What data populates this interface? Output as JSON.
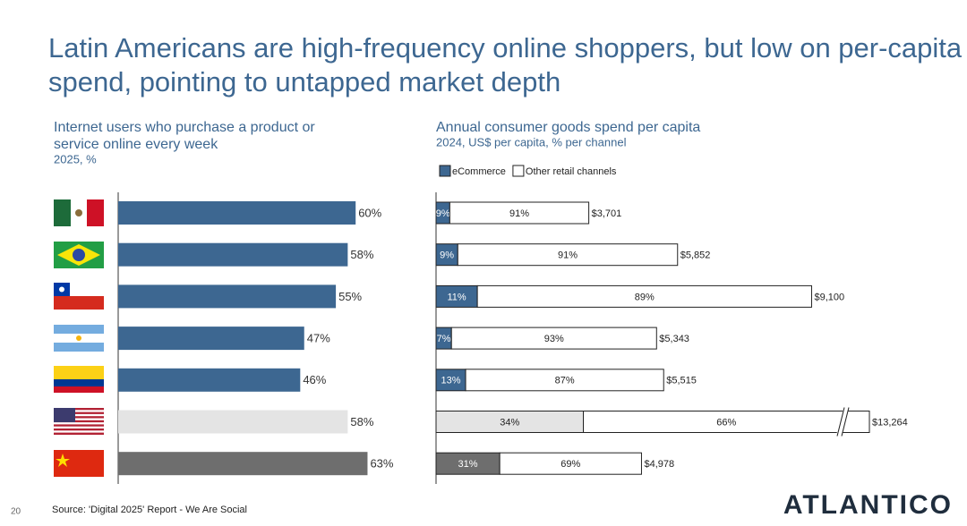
{
  "title": "Latin Americans are high-frequency online shoppers, but low on per-capita spend, pointing to untapped market depth",
  "chart_data": [
    {
      "type": "bar",
      "orientation": "horizontal",
      "title": "Internet users who purchase a product or service online every week",
      "subtitle": "2025, %",
      "categories": [
        null,
        null,
        null,
        null,
        null,
        null,
        null
      ],
      "values": [
        60,
        58,
        55,
        47,
        46,
        58,
        63
      ],
      "value_labels": [
        "60%",
        "58%",
        "55%",
        "47%",
        "46%",
        "58%",
        "63%"
      ],
      "colors": [
        "#3d6791",
        "#3d6791",
        "#3d6791",
        "#3d6791",
        "#3d6791",
        "#e4e4e4",
        "#6e6e6e"
      ],
      "xlim": [
        0,
        100
      ]
    },
    {
      "type": "stacked_bar",
      "orientation": "horizontal",
      "title": "Annual consumer goods spend per capita",
      "subtitle": "2024, US$ per capita, % per channel",
      "categories": [
        null,
        null,
        null,
        null,
        null,
        null,
        null
      ],
      "series": [
        {
          "name": "eCommerce",
          "color": "#3d6791",
          "colors": [
            "#3d6791",
            "#3d6791",
            "#3d6791",
            "#3d6791",
            "#3d6791",
            "#e4e4e4",
            "#6e6e6e"
          ],
          "values": [
            9,
            9,
            11,
            7,
            13,
            34,
            31
          ],
          "value_labels": [
            "9%",
            "9%",
            "11%",
            "7%",
            "13%",
            "34%",
            "31%"
          ]
        },
        {
          "name": "Other retail channels",
          "color": "#ffffff",
          "values": [
            91,
            91,
            89,
            93,
            87,
            66,
            69
          ],
          "value_labels": [
            "91%",
            "91%",
            "89%",
            "93%",
            "87%",
            "66%",
            "69%"
          ]
        }
      ],
      "totals": {
        "values": [
          3701,
          5852,
          9100,
          5343,
          5515,
          13264,
          4978
        ],
        "value_labels": [
          "$3,701",
          "$5,852",
          "$9,100",
          "$5,343",
          "$5,515",
          "$13,264",
          "$4,978"
        ]
      },
      "xlim": [
        0,
        10500
      ]
    }
  ],
  "footer": {
    "page": "20",
    "source": "Source: 'Digital 2025' Report - We Are Social",
    "logo": "ATLANTICO"
  }
}
